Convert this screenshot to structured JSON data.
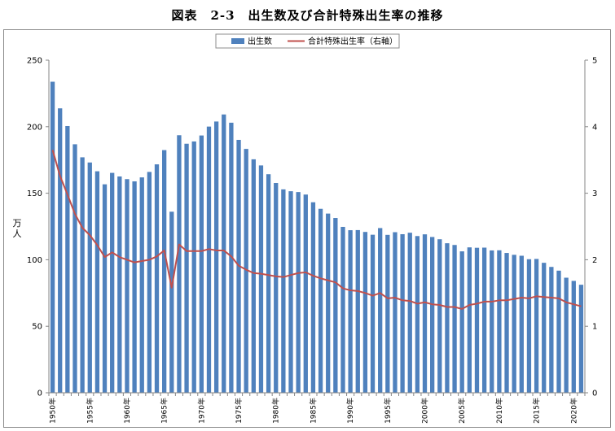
{
  "title": "図表　2-3　出生数及び合計特殊出生率の推移",
  "chart_data": {
    "type": "bar",
    "title": "図表　2-3　出生数及び合計特殊出生率の推移",
    "ylabel": "万人",
    "ylabel_chars": [
      "万",
      "人"
    ],
    "ylim": [
      0,
      250
    ],
    "y2lim": [
      0,
      5
    ],
    "yticks": [
      0,
      50,
      100,
      150,
      200,
      250
    ],
    "y2ticks": [
      0,
      1,
      2,
      3,
      4,
      5
    ],
    "grid": false,
    "legend_position": "top-center",
    "x": [
      1950,
      1951,
      1952,
      1953,
      1954,
      1955,
      1956,
      1957,
      1958,
      1959,
      1960,
      1961,
      1962,
      1963,
      1964,
      1965,
      1966,
      1967,
      1968,
      1969,
      1970,
      1971,
      1972,
      1973,
      1974,
      1975,
      1976,
      1977,
      1978,
      1979,
      1980,
      1981,
      1982,
      1983,
      1984,
      1985,
      1986,
      1987,
      1988,
      1989,
      1990,
      1991,
      1992,
      1993,
      1994,
      1995,
      1996,
      1997,
      1998,
      1999,
      2000,
      2001,
      2002,
      2003,
      2004,
      2005,
      2006,
      2007,
      2008,
      2009,
      2010,
      2011,
      2012,
      2013,
      2014,
      2015,
      2016,
      2017,
      2018,
      2019,
      2020,
      2021
    ],
    "xtick_labels": [
      {
        "year": 1950,
        "label": "1950年"
      },
      {
        "year": 1955,
        "label": "1955年"
      },
      {
        "year": 1960,
        "label": "1960年"
      },
      {
        "year": 1965,
        "label": "1965年"
      },
      {
        "year": 1970,
        "label": "1970年"
      },
      {
        "year": 1975,
        "label": "1975年"
      },
      {
        "year": 1980,
        "label": "1980年"
      },
      {
        "year": 1985,
        "label": "1985年"
      },
      {
        "year": 1990,
        "label": "1990年"
      },
      {
        "year": 1995,
        "label": "1995年"
      },
      {
        "year": 2000,
        "label": "2000年"
      },
      {
        "year": 2005,
        "label": "2005年"
      },
      {
        "year": 2010,
        "label": "2010年"
      },
      {
        "year": 2015,
        "label": "2015年"
      },
      {
        "year": 2020,
        "label": "2020年"
      }
    ],
    "series": [
      {
        "name": "出生数",
        "type": "bar",
        "axis": "left",
        "color": "#4f81bd",
        "values": [
          233.8,
          213.8,
          200.5,
          186.8,
          177.0,
          173.1,
          166.5,
          156.7,
          165.3,
          162.6,
          160.6,
          158.9,
          161.9,
          166.0,
          171.7,
          182.4,
          136.1,
          193.6,
          187.2,
          188.9,
          193.4,
          200.1,
          203.9,
          209.2,
          203.0,
          190.1,
          183.3,
          175.5,
          170.9,
          164.3,
          157.7,
          152.9,
          151.5,
          150.9,
          149.0,
          143.2,
          138.3,
          134.7,
          131.4,
          124.7,
          122.2,
          122.3,
          120.9,
          118.8,
          123.8,
          118.7,
          120.7,
          119.2,
          120.3,
          117.8,
          119.1,
          117.1,
          115.4,
          112.4,
          111.1,
          106.3,
          109.3,
          109.0,
          109.1,
          107.0,
          107.1,
          105.1,
          103.7,
          103.0,
          100.4,
          100.6,
          97.7,
          94.6,
          91.8,
          86.5,
          84.1,
          81.2
        ]
      },
      {
        "name": "合計特殊出生率（右軸）",
        "type": "line",
        "axis": "right",
        "color": "#c0504d",
        "values": [
          3.65,
          3.26,
          2.98,
          2.69,
          2.48,
          2.37,
          2.22,
          2.04,
          2.11,
          2.04,
          2.0,
          1.96,
          1.98,
          2.0,
          2.05,
          2.14,
          1.58,
          2.23,
          2.13,
          2.13,
          2.13,
          2.16,
          2.14,
          2.14,
          2.05,
          1.91,
          1.85,
          1.8,
          1.79,
          1.77,
          1.75,
          1.74,
          1.77,
          1.8,
          1.81,
          1.76,
          1.72,
          1.69,
          1.66,
          1.57,
          1.54,
          1.53,
          1.5,
          1.46,
          1.5,
          1.42,
          1.43,
          1.39,
          1.38,
          1.34,
          1.36,
          1.33,
          1.32,
          1.29,
          1.29,
          1.26,
          1.32,
          1.34,
          1.37,
          1.37,
          1.39,
          1.39,
          1.41,
          1.43,
          1.42,
          1.45,
          1.44,
          1.43,
          1.42,
          1.36,
          1.33,
          1.3
        ]
      }
    ]
  }
}
